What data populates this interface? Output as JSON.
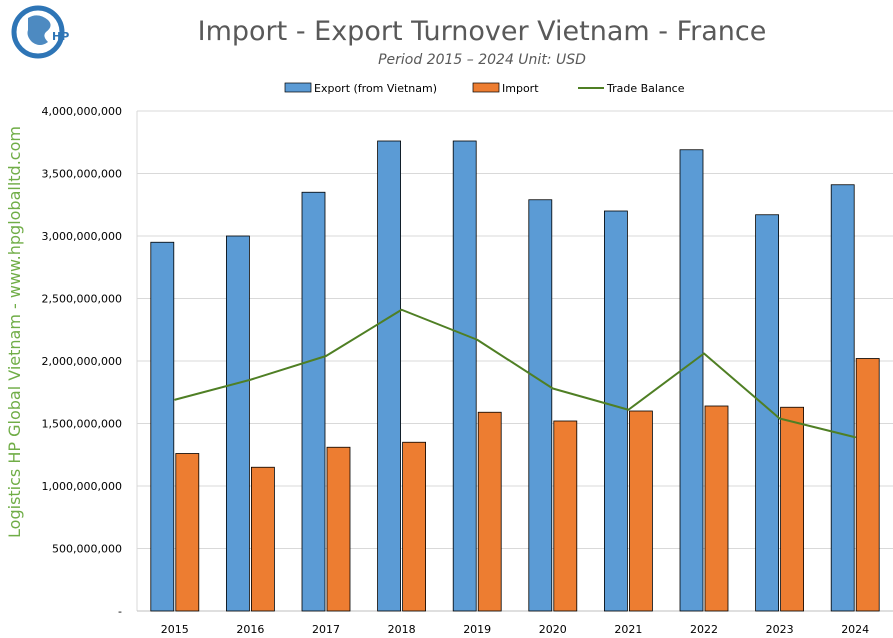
{
  "logo": {
    "text": "HP"
  },
  "watermark": "Logistics HP Global Vietnam - www.hpgloballtd.com",
  "colors": {
    "export": "#5b9bd5",
    "import": "#ed7d31",
    "balance": "#4f7f24",
    "side_text": "#70ad47",
    "logo_blue": "#2e75b6"
  },
  "chart_data": {
    "type": "bar",
    "title": "Import - Export Turnover Vietnam - France",
    "subtitle": "Period 2015 – 2024  Unit: USD",
    "categories": [
      "2015",
      "2016",
      "2017",
      "2018",
      "2019",
      "2020",
      "2021",
      "2022",
      "2023",
      "2024"
    ],
    "series": [
      {
        "name": "Export (from Vietnam)",
        "type": "bar",
        "values": [
          2950000000,
          3000000000,
          3350000000,
          3760000000,
          3760000000,
          3290000000,
          3200000000,
          3690000000,
          3170000000,
          3410000000
        ]
      },
      {
        "name": "Import",
        "type": "bar",
        "values": [
          1260000000,
          1150000000,
          1310000000,
          1350000000,
          1590000000,
          1520000000,
          1600000000,
          1640000000,
          1630000000,
          2020000000
        ]
      },
      {
        "name": "Trade Balance",
        "type": "line",
        "values": [
          1690000000,
          1850000000,
          2040000000,
          2410000000,
          2170000000,
          1780000000,
          1610000000,
          2060000000,
          1540000000,
          1390000000
        ]
      }
    ],
    "ylim": [
      0,
      4000000000
    ],
    "yticks": [
      0,
      500000000,
      1000000000,
      1500000000,
      2000000000,
      2500000000,
      3000000000,
      3500000000,
      4000000000
    ],
    "ytick_labels": [
      "-",
      "500,000,000",
      "1,000,000,000",
      "1,500,000,000",
      "2,000,000,000",
      "2,500,000,000",
      "3,000,000,000",
      "3,500,000,000",
      "4,000,000,000"
    ],
    "grid": true,
    "legend": "top"
  }
}
